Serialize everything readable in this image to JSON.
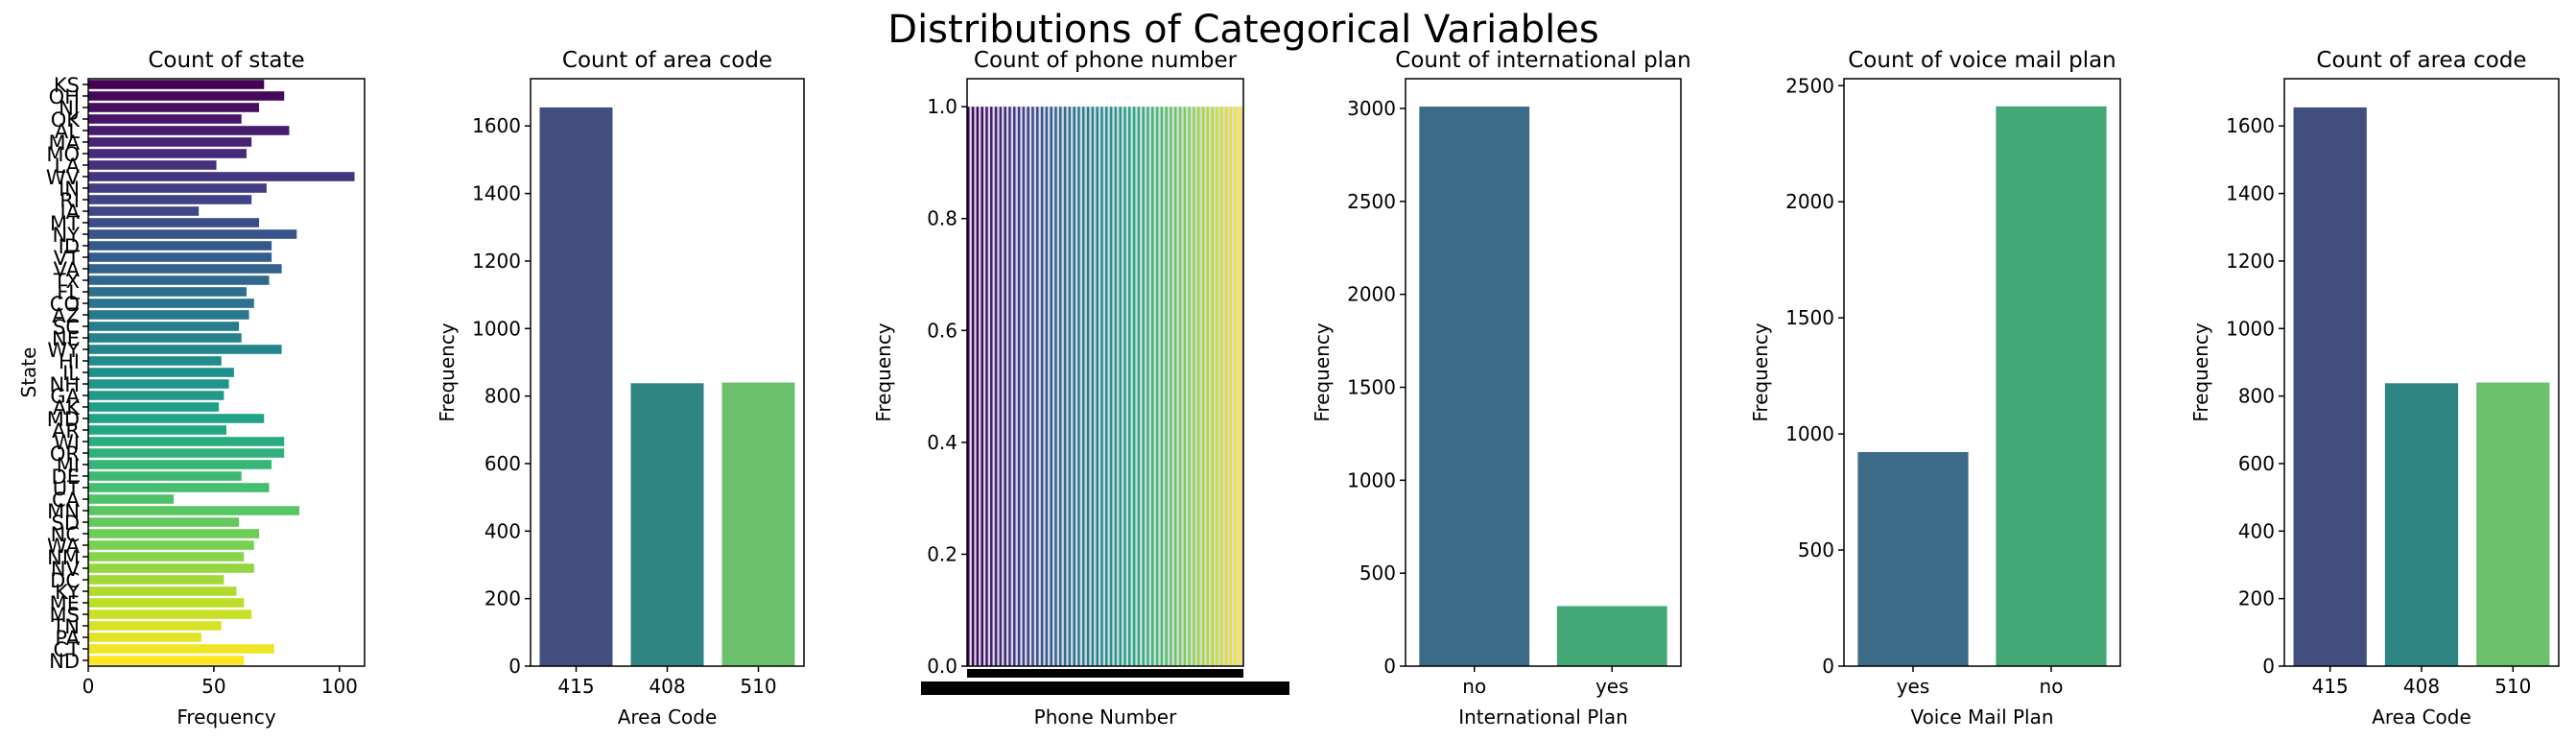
{
  "figure": {
    "suptitle": "Distributions of Categorical Variables"
  },
  "chart_data": [
    {
      "type": "bar",
      "orientation": "horizontal",
      "title": "Count of state",
      "xlabel": "Frequency",
      "ylabel": "State",
      "xlim": [
        0,
        110
      ],
      "xticks": [
        0,
        50,
        100
      ],
      "palette": "viridis",
      "categories": [
        "KS",
        "OH",
        "NJ",
        "OK",
        "AL",
        "MA",
        "MO",
        "LA",
        "WV",
        "IN",
        "RI",
        "IA",
        "MT",
        "NY",
        "ID",
        "VT",
        "VA",
        "TX",
        "FL",
        "CO",
        "AZ",
        "SC",
        "NE",
        "WY",
        "HI",
        "IL",
        "NH",
        "GA",
        "AK",
        "MD",
        "AR",
        "WI",
        "OR",
        "MI",
        "DE",
        "UT",
        "CA",
        "MN",
        "SD",
        "NC",
        "WA",
        "NM",
        "NV",
        "DC",
        "KY",
        "ME",
        "MS",
        "TN",
        "PA",
        "CT",
        "ND"
      ],
      "values": [
        70,
        78,
        68,
        61,
        80,
        65,
        63,
        51,
        106,
        71,
        65,
        44,
        68,
        83,
        73,
        73,
        77,
        72,
        63,
        66,
        64,
        60,
        61,
        77,
        53,
        58,
        56,
        54,
        52,
        70,
        55,
        78,
        78,
        73,
        61,
        72,
        34,
        84,
        60,
        68,
        66,
        62,
        66,
        54,
        59,
        62,
        65,
        53,
        45,
        74,
        62
      ]
    },
    {
      "type": "bar",
      "title": "Count of area code",
      "xlabel": "Area Code",
      "ylabel": "Frequency",
      "ylim": [
        0,
        1740
      ],
      "yticks": [
        0,
        200,
        400,
        600,
        800,
        1000,
        1200,
        1400,
        1600
      ],
      "categories": [
        "415",
        "408",
        "510"
      ],
      "values": [
        1655,
        838,
        840
      ],
      "colors": [
        "#414e7e",
        "#2f8581",
        "#6cbf6b"
      ]
    },
    {
      "type": "bar",
      "title": "Count of phone number",
      "xlabel": "Phone Number",
      "ylabel": "Frequency",
      "ylim": [
        0,
        1.05
      ],
      "yticks": [
        "0.0",
        "0.2",
        "0.4",
        "0.6",
        "0.8",
        "1.0"
      ],
      "bar_value": 1.0,
      "palette": "viridis",
      "note_categories": "3333 unique phone numbers, each with count 1; tick labels overlap into a solid band"
    },
    {
      "type": "bar",
      "title": "Count of international plan",
      "xlabel": "International Plan",
      "ylabel": "Frequency",
      "ylim": [
        0,
        3160
      ],
      "yticks": [
        0,
        500,
        1000,
        1500,
        2000,
        2500,
        3000
      ],
      "categories": [
        "no",
        "yes"
      ],
      "values": [
        3010,
        323
      ],
      "colors": [
        "#3c6b87",
        "#44a876"
      ]
    },
    {
      "type": "bar",
      "title": "Count of voice mail plan",
      "xlabel": "Voice Mail Plan",
      "ylabel": "Frequency",
      "ylim": [
        0,
        2530
      ],
      "yticks": [
        0,
        500,
        1000,
        1500,
        2000,
        2500
      ],
      "categories": [
        "yes",
        "no"
      ],
      "values": [
        922,
        2411
      ],
      "colors": [
        "#3c6b87",
        "#44a876"
      ]
    },
    {
      "type": "bar",
      "title": "Count of area code",
      "xlabel": "Area Code",
      "ylabel": "Frequency",
      "ylim": [
        0,
        1740
      ],
      "yticks": [
        0,
        200,
        400,
        600,
        800,
        1000,
        1200,
        1400,
        1600
      ],
      "categories": [
        "415",
        "408",
        "510"
      ],
      "values": [
        1655,
        838,
        840
      ],
      "colors": [
        "#414e7e",
        "#2f8581",
        "#6cbf6b"
      ]
    }
  ]
}
